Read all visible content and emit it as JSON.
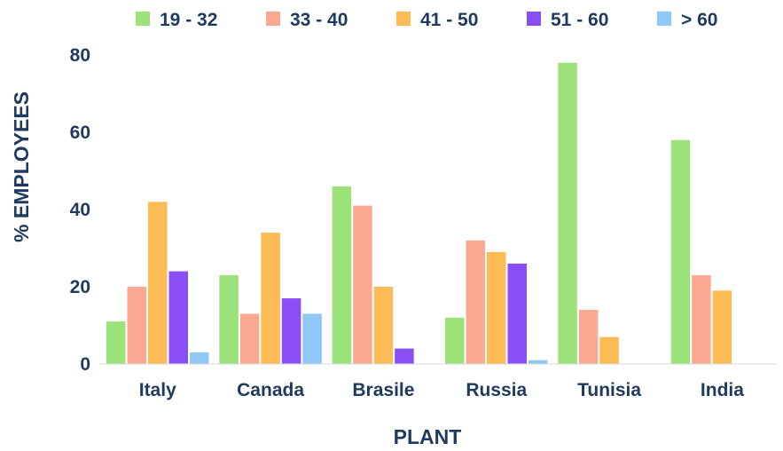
{
  "chart_data": {
    "type": "bar",
    "title": "",
    "xlabel": "PLANT",
    "ylabel": "% EMPLOYEES",
    "ylim": [
      0,
      80
    ],
    "yticks": [
      0,
      20,
      40,
      60,
      80
    ],
    "grid": false,
    "legend_position": "top",
    "categories": [
      "Italy",
      "Canada",
      "Brasile",
      "Russia",
      "Tunisia",
      "India"
    ],
    "series": [
      {
        "name": "19 - 32",
        "color": "#9be27b",
        "values": [
          11,
          23,
          46,
          12,
          78,
          58
        ]
      },
      {
        "name": "33 - 40",
        "color": "#fba892",
        "values": [
          20,
          13,
          41,
          32,
          14,
          23
        ]
      },
      {
        "name": "41 - 50",
        "color": "#fdbb55",
        "values": [
          42,
          34,
          20,
          29,
          7,
          19
        ]
      },
      {
        "name": "51 - 60",
        "color": "#8a4ef5",
        "values": [
          24,
          17,
          4,
          26,
          0,
          0
        ]
      },
      {
        "name": "> 60",
        "color": "#8fc8f8",
        "values": [
          3,
          13,
          0,
          1,
          0,
          0
        ]
      }
    ]
  }
}
